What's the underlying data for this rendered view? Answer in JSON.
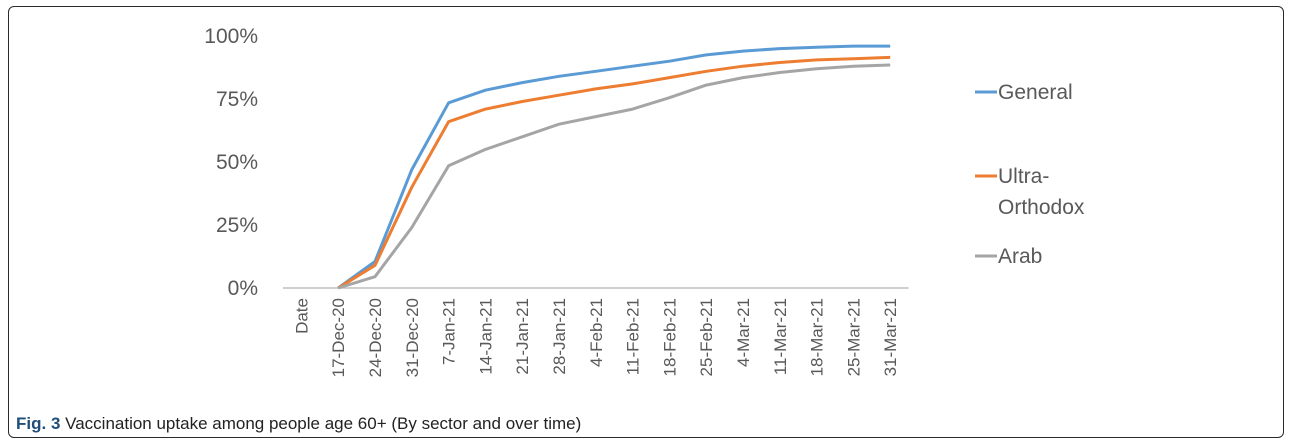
{
  "chart_data": {
    "type": "line",
    "categories": [
      "Date",
      "17-Dec-20",
      "24-Dec-20",
      "31-Dec-20",
      "7-Jan-21",
      "14-Jan-21",
      "21-Jan-21",
      "28-Jan-21",
      "4-Feb-21",
      "11-Feb-21",
      "18-Feb-21",
      "25-Feb-21",
      "4-Mar-21",
      "11-Mar-21",
      "18-Mar-21",
      "25-Mar-21",
      "31-Mar-21"
    ],
    "series": [
      {
        "name": "General",
        "color": "#5b9bd5",
        "values": [
          null,
          0,
          10.5,
          47,
          73.5,
          78.5,
          81.5,
          84,
          86,
          88,
          90,
          92.5,
          94,
          95,
          95.5,
          96,
          96
        ]
      },
      {
        "name": "Ultra-Orthodox",
        "color": "#ed7d31",
        "values": [
          null,
          0,
          9,
          40,
          66,
          71,
          74,
          76.5,
          79,
          81,
          83.5,
          86,
          88,
          89.5,
          90.5,
          91,
          91.5
        ]
      },
      {
        "name": "Arab",
        "color": "#a5a5a5",
        "values": [
          null,
          0,
          4.5,
          24,
          48.5,
          55,
          60,
          65,
          68,
          71,
          75.5,
          80.5,
          83.5,
          85.5,
          87,
          88,
          88.5
        ]
      }
    ],
    "ylim": [
      0,
      100
    ],
    "yticks": [
      "0%",
      "25%",
      "50%",
      "75%",
      "100%"
    ],
    "ytick_values": [
      0,
      25,
      50,
      75,
      100
    ],
    "grid": false,
    "legend_position": "right"
  },
  "caption": {
    "label": "Fig. 3",
    "text": " Vaccination uptake among people age 60+ (By sector and over time)"
  },
  "legend": {
    "general": "General",
    "ultra_line1": "Ultra-",
    "ultra_line2": "Orthodox",
    "arab": "Arab"
  }
}
